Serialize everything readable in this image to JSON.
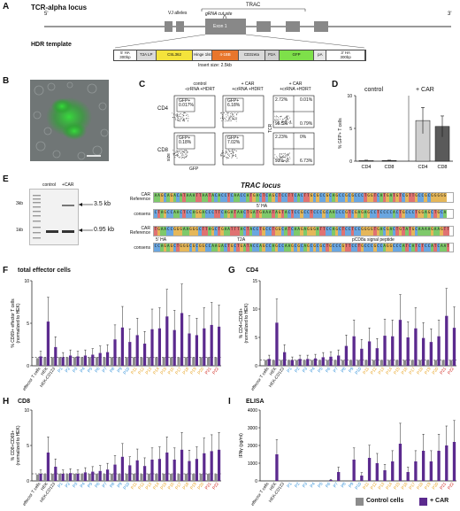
{
  "panels": {
    "A": {
      "letter": "A",
      "title": "TCR-alpha locus",
      "trac": "TRAC",
      "five_prime": "5'",
      "three_prime": "3'",
      "vj": "VJ alleles",
      "cut_site": "gRNA cut site",
      "exon": "Exon 1",
      "hdr_title": "HDR template",
      "segments": [
        {
          "label": "5' HA\n300bp",
          "color": "#ffffff"
        },
        {
          "label": "T2A LP",
          "color": "#d9d9d9"
        },
        {
          "label": "CSL362",
          "color": "#f4e33b"
        },
        {
          "label": "Hinge 1lst",
          "color": "#eeeeee"
        },
        {
          "label": "4-1BB",
          "color": "#e8762c"
        },
        {
          "label": "CD3zeta",
          "color": "#d9d9d9"
        },
        {
          "label": "P2A",
          "color": "#cfcfcf"
        },
        {
          "label": "GFP",
          "color": "#7ee04a"
        },
        {
          "label": "pA",
          "color": "#e6e6e6"
        },
        {
          "label": "3' HA\n300bp",
          "color": "#ffffff"
        }
      ],
      "insert_size": "Insert size: 2.5kb"
    },
    "B": {
      "letter": "B"
    },
    "C": {
      "letter": "C",
      "col_headers": [
        "control\n-crRNA +HDRT",
        "+ CAR\n+crRNA +HDRT",
        "+ CAR\n+crRNA +HDRT"
      ],
      "row_labels": [
        "CD4",
        "CD8"
      ],
      "gfp_label": "GFP",
      "size_label": "size",
      "tcr_label": "TCR",
      "gates": {
        "cd4_control": "GFP+\n0.017%",
        "cd4_car": "GFP+\n6.18%",
        "cd8_control": "GFP+\n0.18%",
        "cd8_car": "GFP+\n7.02%",
        "q_cd4": [
          "2.72%",
          "0.01%",
          "95.5%",
          "0.79%"
        ],
        "q_cd8": [
          "2.23%",
          "0%",
          "91%",
          "6.73%"
        ]
      }
    },
    "D": {
      "letter": "D",
      "ylabel": "% GFP+ T cells",
      "groups": [
        "control",
        "+ CAR"
      ],
      "categories": [
        "CD4",
        "CD8",
        "CD4",
        "CD8"
      ],
      "y_ticks": [
        "0",
        "5",
        "10"
      ]
    },
    "E": {
      "letter": "E",
      "lanes": [
        "control",
        "+CAR"
      ],
      "ladder": [
        "3kb",
        "1kb"
      ],
      "bands": [
        "3.5 kb",
        "0.95 kb"
      ],
      "locus": "TRAC locus",
      "seq_labels": [
        "CAR\nReference",
        "consens",
        "CAR\nReference",
        "consens"
      ],
      "ann1": "5' HA",
      "ann2": "T2A",
      "ann3": "pCD8a signal peptide",
      "seq1": "AAGCAGACATAAATTAATACACCTCAACCATGACTCAGCTCCTTCACTTGCGCCGCAGCCGCGCCCTGGTCATGATGTCGTTGCCGCGGGGG",
      "seq2": "CTAGCCAACTCCAGGACCCTTCAGATAACTGATGAAATAGTACTCCGCCTCCCGCAACCCGTCGAGAGCCTCCCCACTGCCCTGGAGCTGCA",
      "seq3": "TGAACCGGGAAGGGCTTAGCTGAATTTACTACCTGCCTGGCATCAAGAGGGATTCCAGCTCCTCCGGGGTGACGACTGTATGCAAAAGAAGTT",
      "seq4": "CCAGAGCTGGGCGCGGCCAAGACTGCTGATACCAGCCAGCCAAGCGCAGCGCGCTGCCCGTTCCTGCCCGCCAGGCCCATCATCTCCATCAAT"
    },
    "F": {
      "letter": "F",
      "title": "total effector cells",
      "ylabel": "% CD69+ effector T cells\n(normalized to HEK)",
      "y_ticks": [
        "0",
        "5",
        "10"
      ]
    },
    "G": {
      "letter": "G",
      "title": "CD4",
      "ylabel": "% CD4+CD69+\n(normalized to HEK)",
      "y_ticks": [
        "0",
        "5",
        "10",
        "15"
      ]
    },
    "H": {
      "letter": "H",
      "title": "CD8",
      "ylabel": "% CD8+CD69+\n(normalized to HEK)",
      "y_ticks": [
        "0",
        "5",
        "10"
      ]
    },
    "I": {
      "letter": "I",
      "title": "ELISA",
      "ylabel": "IFNγ (pg/ml)",
      "y_ticks": [
        "0",
        "1000",
        "2000",
        "3000",
        "4000"
      ]
    }
  },
  "xcats": [
    {
      "label": "effector T cells",
      "color": "#111111"
    },
    {
      "label": "HEK",
      "color": "#111111"
    },
    {
      "label": "HEK-CD123",
      "color": "#111111"
    },
    {
      "label": "P1",
      "color": "#2f8fd8"
    },
    {
      "label": "P2",
      "color": "#2f8fd8"
    },
    {
      "label": "P3",
      "color": "#2f8fd8"
    },
    {
      "label": "P4",
      "color": "#2f8fd8"
    },
    {
      "label": "P5",
      "color": "#2f8fd8"
    },
    {
      "label": "P6",
      "color": "#2f8fd8"
    },
    {
      "label": "P7",
      "color": "#2f8fd8"
    },
    {
      "label": "P8",
      "color": "#2f8fd8"
    },
    {
      "label": "P9",
      "color": "#2f8fd8"
    },
    {
      "label": "P10",
      "color": "#2f8fd8"
    },
    {
      "label": "P11",
      "color": "#e8a321"
    },
    {
      "label": "P12",
      "color": "#e8a321"
    },
    {
      "label": "P13",
      "color": "#e8a321"
    },
    {
      "label": "P14",
      "color": "#e8a321"
    },
    {
      "label": "P15",
      "color": "#e8a321"
    },
    {
      "label": "P16",
      "color": "#e8a321"
    },
    {
      "label": "P17",
      "color": "#e8a321"
    },
    {
      "label": "P18",
      "color": "#e8a321"
    },
    {
      "label": "P19",
      "color": "#e8a321"
    },
    {
      "label": "P20",
      "color": "#e8a321"
    },
    {
      "label": "P21",
      "color": "#d0281f"
    },
    {
      "label": "P22",
      "color": "#d0281f"
    }
  ],
  "legend": [
    {
      "label": "Control cells",
      "color": "#8c8c8c"
    },
    {
      "label": "+ CAR",
      "color": "#5b2a8e"
    }
  ],
  "chart_data": [
    {
      "panel": "D",
      "type": "bar",
      "categories": [
        "CD4",
        "CD8",
        "CD4",
        "CD8"
      ],
      "groups": [
        "control",
        "control",
        "+ CAR",
        "+ CAR"
      ],
      "values": [
        0.1,
        0.1,
        6.2,
        5.3
      ],
      "errors": [
        0.05,
        0.05,
        2.0,
        1.6
      ],
      "ylim": [
        0,
        10
      ]
    },
    {
      "panel": "F",
      "type": "bar",
      "ylim": [
        0,
        10
      ],
      "series": [
        {
          "name": "Control cells",
          "values": [
            0.9,
            1,
            1,
            1,
            1,
            1,
            1,
            1,
            1,
            1,
            1,
            1,
            1,
            1,
            1,
            1,
            1,
            1,
            1,
            1,
            1,
            1,
            1,
            1,
            1
          ]
        },
        {
          "name": "+ CAR",
          "values": [
            1.1,
            5.2,
            2.2,
            1,
            1.2,
            1.1,
            1.2,
            1.3,
            1.5,
            1.6,
            3.1,
            4.5,
            2.8,
            3.6,
            2.6,
            4.3,
            4.4,
            5.8,
            4.2,
            6.2,
            3.8,
            3.6,
            4.4,
            4.8,
            4.6
          ]
        }
      ]
    },
    {
      "panel": "G",
      "type": "bar",
      "ylim": [
        0,
        15
      ],
      "series": [
        {
          "name": "Control cells",
          "values": [
            1,
            1,
            1,
            1,
            1,
            1,
            1,
            1,
            1,
            1,
            1,
            1,
            1,
            1,
            1,
            1,
            1,
            1,
            1,
            1,
            1,
            1,
            1,
            1,
            1
          ]
        },
        {
          "name": "+ CAR",
          "values": [
            1.2,
            7.6,
            2.4,
            1,
            1.2,
            1.2,
            1.3,
            1.5,
            1.6,
            1.8,
            3.5,
            5.2,
            3,
            4.3,
            3.1,
            5.3,
            5.2,
            8.1,
            5,
            6.6,
            4.9,
            4.2,
            5.2,
            8.8,
            6.7
          ]
        }
      ]
    },
    {
      "panel": "H",
      "type": "bar",
      "ylim": [
        0,
        10
      ],
      "series": [
        {
          "name": "Control cells",
          "values": [
            0.9,
            1,
            1,
            1,
            1,
            1,
            1,
            1,
            1,
            1,
            1,
            1,
            1,
            1,
            1,
            1,
            1,
            1,
            1,
            1,
            1,
            1,
            1,
            1,
            1
          ]
        },
        {
          "name": "+ CAR",
          "values": [
            1,
            4,
            2,
            1,
            1.1,
            1,
            1.2,
            1.3,
            1.4,
            1.6,
            2.3,
            3.4,
            2.2,
            2.9,
            2.1,
            3,
            3.1,
            4,
            3,
            4.4,
            2.8,
            3.1,
            3.9,
            4.2,
            4.4
          ]
        }
      ]
    },
    {
      "panel": "I",
      "type": "bar",
      "ylim": [
        0,
        4000
      ],
      "series": [
        {
          "name": "Control cells",
          "values": [
            0,
            0,
            0,
            0,
            0,
            0,
            0,
            0,
            0,
            0,
            0,
            0,
            0,
            0,
            0,
            0,
            0,
            0,
            0,
            0,
            0,
            0,
            0,
            0,
            0
          ]
        },
        {
          "name": "+ CAR",
          "values": [
            0,
            1500,
            0,
            0,
            0,
            0,
            0,
            0,
            50,
            500,
            0,
            1200,
            300,
            1300,
            1000,
            600,
            1100,
            2100,
            500,
            1100,
            1700,
            1100,
            1700,
            2000,
            2200
          ]
        }
      ]
    }
  ]
}
